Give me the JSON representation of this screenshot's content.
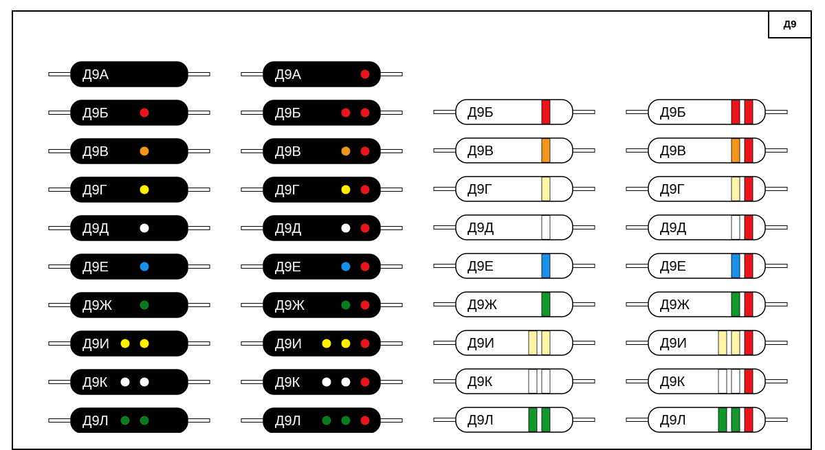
{
  "title": "Д9",
  "colors": {
    "red": "#e8161c",
    "orange": "#f0961e",
    "yellow": "#ffee00",
    "pale_yellow": "#fff5a8",
    "white": "#ffffff",
    "blue": "#1b8fe6",
    "green": "#0c7a1e",
    "stripe_green": "#13962c",
    "black": "#000000"
  },
  "columns": [
    {
      "style": "black-dots",
      "items": [
        {
          "label": "Д9А",
          "marks": []
        },
        {
          "label": "Д9Б",
          "marks": [
            "red"
          ]
        },
        {
          "label": "Д9В",
          "marks": [
            "orange"
          ]
        },
        {
          "label": "Д9Г",
          "marks": [
            "yellow"
          ]
        },
        {
          "label": "Д9Д",
          "marks": [
            "white"
          ]
        },
        {
          "label": "Д9Е",
          "marks": [
            "blue"
          ]
        },
        {
          "label": "Д9Ж",
          "marks": [
            "green"
          ]
        },
        {
          "label": "Д9И",
          "marks": [
            "yellow",
            "yellow"
          ]
        },
        {
          "label": "Д9К",
          "marks": [
            "white",
            "white"
          ]
        },
        {
          "label": "Д9Л",
          "marks": [
            "green",
            "green"
          ]
        }
      ]
    },
    {
      "style": "black-dots-red-end",
      "items": [
        {
          "label": "Д9А",
          "marks": [
            "red"
          ]
        },
        {
          "label": "Д9Б",
          "marks": [
            "red",
            "red"
          ]
        },
        {
          "label": "Д9В",
          "marks": [
            "orange",
            "red"
          ]
        },
        {
          "label": "Д9Г",
          "marks": [
            "yellow",
            "red"
          ]
        },
        {
          "label": "Д9Д",
          "marks": [
            "white",
            "red"
          ]
        },
        {
          "label": "Д9Е",
          "marks": [
            "blue",
            "red"
          ]
        },
        {
          "label": "Д9Ж",
          "marks": [
            "green",
            "red"
          ]
        },
        {
          "label": "Д9И",
          "marks": [
            "yellow",
            "yellow",
            "red"
          ]
        },
        {
          "label": "Д9К",
          "marks": [
            "white",
            "white",
            "red"
          ]
        },
        {
          "label": "Д9Л",
          "marks": [
            "green",
            "green",
            "red"
          ]
        }
      ]
    },
    {
      "style": "white-stripes",
      "items": [
        {
          "label": "Д9Б",
          "marks": [
            "red"
          ]
        },
        {
          "label": "Д9В",
          "marks": [
            "orange"
          ]
        },
        {
          "label": "Д9Г",
          "marks": [
            "pale_yellow"
          ]
        },
        {
          "label": "Д9Д",
          "marks": [
            "white"
          ]
        },
        {
          "label": "Д9Е",
          "marks": [
            "blue"
          ]
        },
        {
          "label": "Д9Ж",
          "marks": [
            "stripe_green"
          ]
        },
        {
          "label": "Д9И",
          "marks": [
            "pale_yellow",
            "pale_yellow"
          ]
        },
        {
          "label": "Д9К",
          "marks": [
            "white",
            "white"
          ]
        },
        {
          "label": "Д9Л",
          "marks": [
            "stripe_green",
            "stripe_green"
          ]
        }
      ]
    },
    {
      "style": "white-stripes-red-end",
      "items": [
        {
          "label": "Д9Б",
          "marks": [
            "red",
            "red"
          ]
        },
        {
          "label": "Д9В",
          "marks": [
            "orange",
            "red"
          ]
        },
        {
          "label": "Д9Г",
          "marks": [
            "pale_yellow",
            "red"
          ]
        },
        {
          "label": "Д9Д",
          "marks": [
            "white",
            "red"
          ]
        },
        {
          "label": "Д9Е",
          "marks": [
            "blue",
            "red"
          ]
        },
        {
          "label": "Д9Ж",
          "marks": [
            "stripe_green",
            "red"
          ]
        },
        {
          "label": "Д9И",
          "marks": [
            "pale_yellow",
            "pale_yellow",
            "red"
          ]
        },
        {
          "label": "Д9К",
          "marks": [
            "white",
            "white",
            "red"
          ]
        },
        {
          "label": "Д9Л",
          "marks": [
            "stripe_green",
            "stripe_green",
            "red"
          ]
        }
      ]
    }
  ]
}
